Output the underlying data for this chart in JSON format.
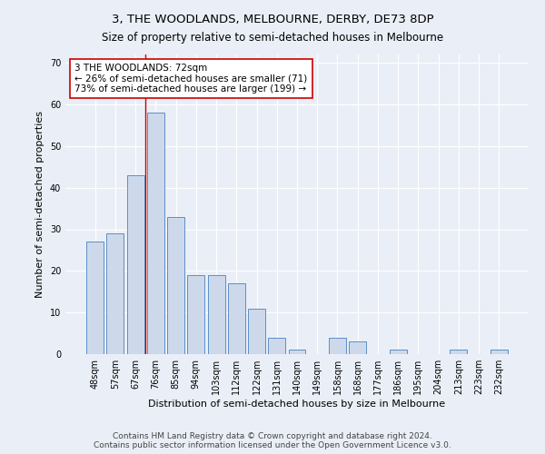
{
  "title": "3, THE WOODLANDS, MELBOURNE, DERBY, DE73 8DP",
  "subtitle": "Size of property relative to semi-detached houses in Melbourne",
  "xlabel": "Distribution of semi-detached houses by size in Melbourne",
  "ylabel": "Number of semi-detached properties",
  "footer_line1": "Contains HM Land Registry data © Crown copyright and database right 2024.",
  "footer_line2": "Contains public sector information licensed under the Open Government Licence v3.0.",
  "categories": [
    "48sqm",
    "57sqm",
    "67sqm",
    "76sqm",
    "85sqm",
    "94sqm",
    "103sqm",
    "112sqm",
    "122sqm",
    "131sqm",
    "140sqm",
    "149sqm",
    "158sqm",
    "168sqm",
    "177sqm",
    "186sqm",
    "195sqm",
    "204sqm",
    "213sqm",
    "223sqm",
    "232sqm"
  ],
  "values": [
    27,
    29,
    43,
    58,
    33,
    19,
    19,
    17,
    11,
    4,
    1,
    0,
    4,
    3,
    0,
    1,
    0,
    0,
    1,
    0,
    1
  ],
  "bar_color": "#cdd9ea",
  "bar_edge_color": "#5b8fc9",
  "annotation_text_line1": "3 THE WOODLANDS: 72sqm",
  "annotation_text_line2": "← 26% of semi-detached houses are smaller (71)",
  "annotation_text_line3": "73% of semi-detached houses are larger (199) →",
  "annotation_box_color": "#ffffff",
  "annotation_box_edge": "#cc0000",
  "vline_x": 2.5,
  "vline_color": "#cc0000",
  "ylim": [
    0,
    72
  ],
  "yticks": [
    0,
    10,
    20,
    30,
    40,
    50,
    60,
    70
  ],
  "bg_color": "#eaeff7",
  "plot_bg_color": "#eaeff7",
  "grid_color": "#ffffff",
  "title_fontsize": 9.5,
  "subtitle_fontsize": 8.5,
  "xlabel_fontsize": 8,
  "ylabel_fontsize": 8,
  "tick_fontsize": 7,
  "annotation_fontsize": 7.5,
  "footer_fontsize": 6.5
}
